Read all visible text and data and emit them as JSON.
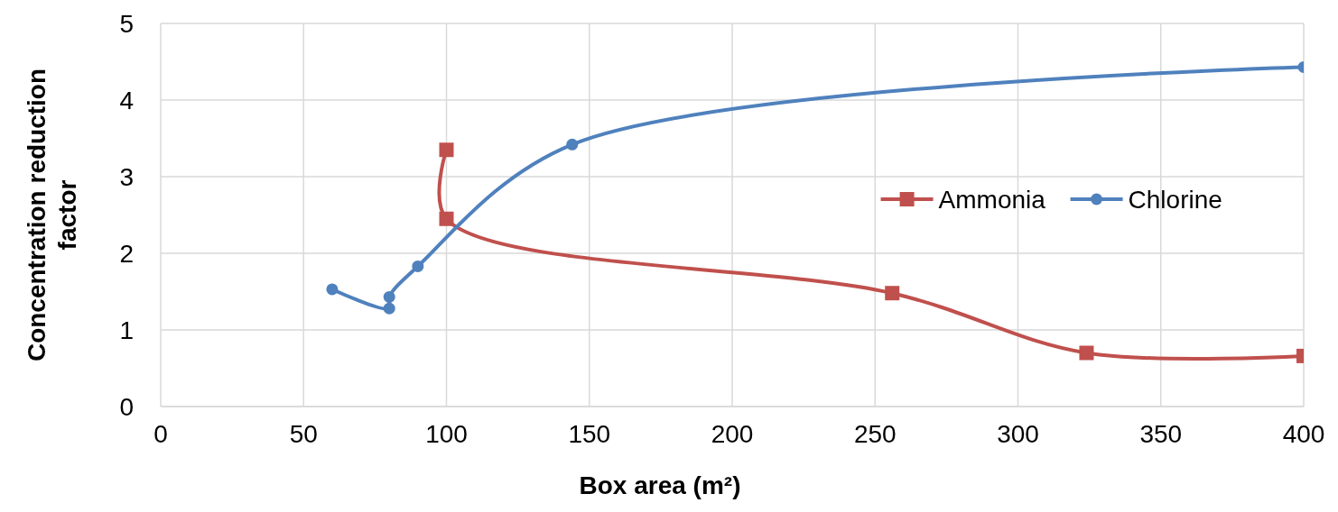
{
  "chart_data": {
    "type": "line",
    "xlabel": "Box area (m²)",
    "ylabel": "Concentration reduction factor",
    "xlim": [
      0,
      400
    ],
    "xticks": [
      0,
      50,
      100,
      150,
      200,
      250,
      300,
      350,
      400
    ],
    "ylim": [
      0,
      5
    ],
    "yticks": [
      0,
      1,
      2,
      3,
      4,
      5
    ],
    "grid": true,
    "legend": "right",
    "line_style": "solid",
    "series": [
      {
        "name": "Ammonia",
        "color": "#c0504d",
        "marker": "square",
        "x": [
          100,
          100,
          256,
          324,
          400
        ],
        "values": [
          3.35,
          2.45,
          1.48,
          0.7,
          0.66
        ]
      },
      {
        "name": "Chlorine",
        "color": "#4f81bd",
        "marker": "circle",
        "x": [
          60,
          80,
          80,
          90,
          144,
          400
        ],
        "values": [
          1.53,
          1.28,
          1.43,
          1.83,
          3.42,
          4.43
        ]
      }
    ]
  }
}
